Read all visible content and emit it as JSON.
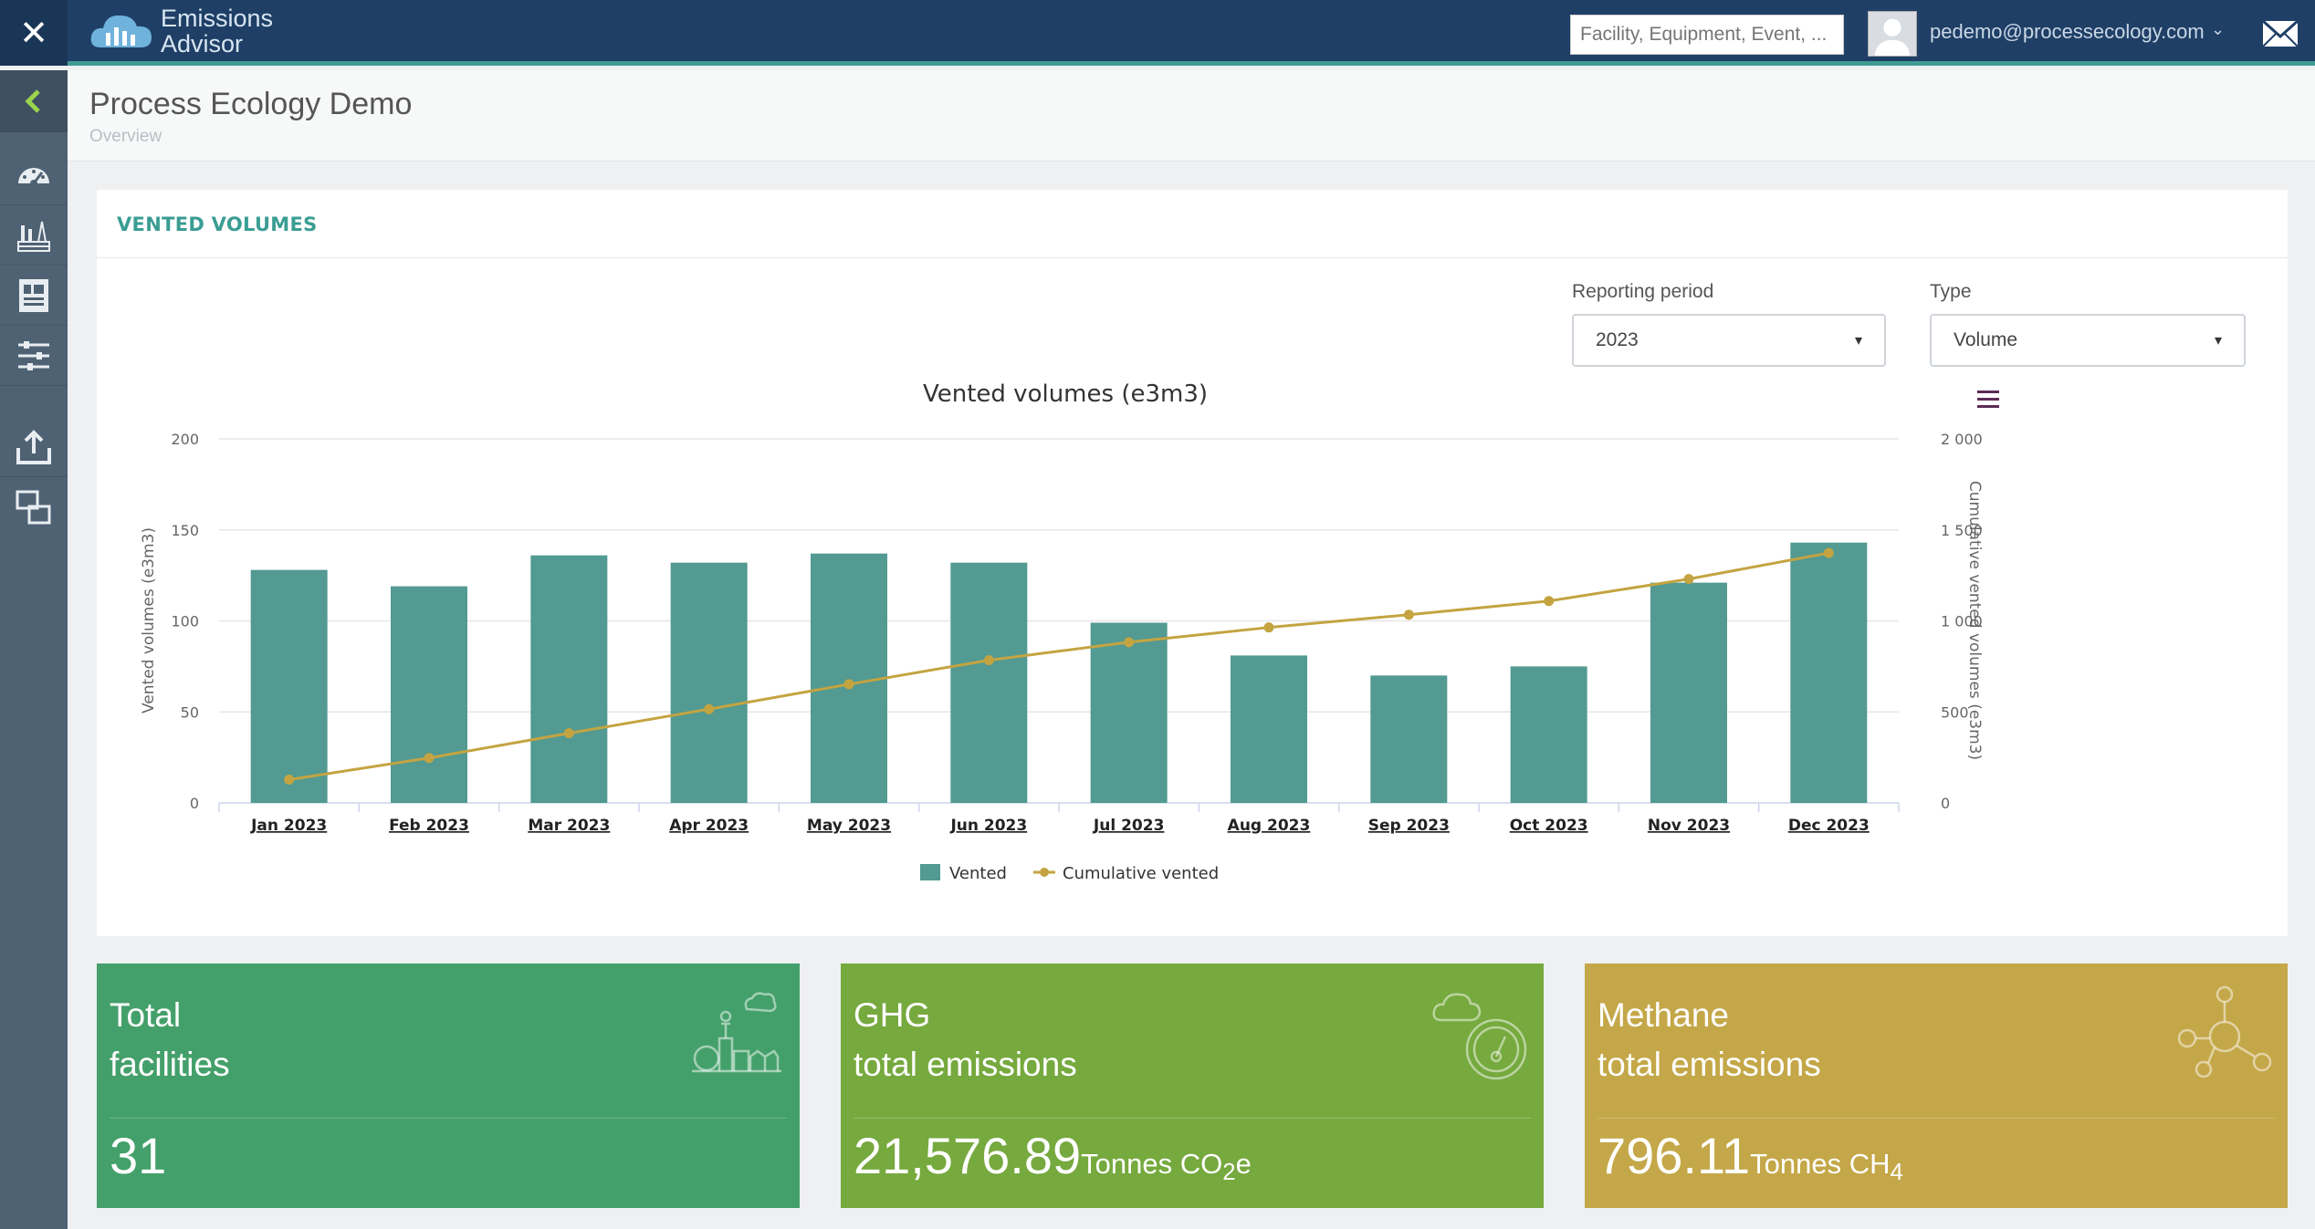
{
  "app": {
    "logo_line1": "Emissions",
    "logo_line2": "Advisor"
  },
  "topbar": {
    "search_placeholder": "Facility, Equipment, Event, ...",
    "user_email": "pedemo@processecology.com"
  },
  "sidebar": {
    "items": [
      "back-icon",
      "dashboard-icon",
      "facilities-icon",
      "reports-icon",
      "settings-sliders-icon",
      "upload-icon",
      "windows-icon"
    ]
  },
  "page": {
    "title": "Process Ecology Demo",
    "breadcrumb": "Overview"
  },
  "card": {
    "title": "VENTED VOLUMES",
    "reporting_period_label": "Reporting period",
    "reporting_period_value": "2023",
    "type_label": "Type",
    "type_value": "Volume"
  },
  "chart_data": {
    "type": "bar",
    "title": "Vented volumes (e3m3)",
    "categories": [
      "Jan 2023",
      "Feb 2023",
      "Mar 2023",
      "Apr 2023",
      "May 2023",
      "Jun 2023",
      "Jul 2023",
      "Aug 2023",
      "Sep 2023",
      "Oct 2023",
      "Nov 2023",
      "Dec 2023"
    ],
    "series": [
      {
        "name": "Vented",
        "kind": "bar",
        "axis": "left",
        "values": [
          128,
          119,
          136,
          132,
          137,
          132,
          99,
          81,
          70,
          75,
          121,
          143
        ]
      },
      {
        "name": "Cumulative vented",
        "kind": "line",
        "axis": "right",
        "values": [
          128,
          247,
          383,
          515,
          652,
          784,
          883,
          964,
          1034,
          1109,
          1230,
          1373
        ]
      }
    ],
    "ylabel": "Vented volumes (e3m3)",
    "y2label": "Cumulative vented volumes (e3m3)",
    "ylim": [
      0,
      200
    ],
    "y2lim": [
      0,
      2000
    ],
    "yticks": [
      "0",
      "50",
      "100",
      "150",
      "200"
    ],
    "y2ticks": [
      "0",
      "500",
      "1 000",
      "1 500",
      "2 000"
    ],
    "grid": true,
    "legend": "bottom-center",
    "colors": {
      "bar": "#529a92",
      "line": "#c4a441"
    }
  },
  "tiles": [
    {
      "line1": "Total",
      "line2": "facilities",
      "value": "31",
      "unit_main": "",
      "unit_sub": "",
      "color": "#44a06a",
      "icon": "facility-icon"
    },
    {
      "line1": "GHG",
      "line2": "total emissions",
      "value": "21,576.89",
      "unit_main": "Tonnes CO",
      "unit_sub": "2",
      "unit_end": "e",
      "color": "#76a93e",
      "icon": "cloud-gauge-icon"
    },
    {
      "line1": "Methane",
      "line2": "total emissions",
      "value": "796.11",
      "unit_main": "Tonnes CH",
      "unit_sub": "4",
      "unit_end": "",
      "color": "#c4a748",
      "icon": "molecule-icon"
    }
  ]
}
